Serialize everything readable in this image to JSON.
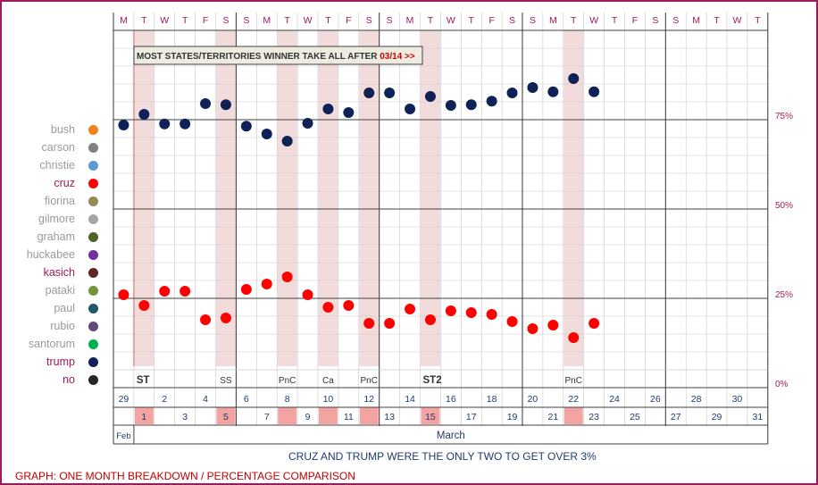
{
  "chart_data": {
    "type": "scatter",
    "title": "",
    "weekday_letters": [
      "M",
      "T",
      "W",
      "T",
      "F",
      "S",
      "S",
      "M",
      "T",
      "W",
      "T",
      "F",
      "S",
      "S",
      "M",
      "T",
      "W",
      "T",
      "F",
      "S",
      "S",
      "M",
      "T",
      "W",
      "T",
      "F",
      "S",
      "S",
      "M",
      "T",
      "W",
      "T"
    ],
    "dates": [
      {
        "month": "Feb",
        "day": 29
      },
      {
        "month": "March",
        "day": 1
      },
      {
        "month": "March",
        "day": 2
      },
      {
        "month": "March",
        "day": 3
      },
      {
        "month": "March",
        "day": 4
      },
      {
        "month": "March",
        "day": 5
      },
      {
        "month": "March",
        "day": 6
      },
      {
        "month": "March",
        "day": 7
      },
      {
        "month": "March",
        "day": 8
      },
      {
        "month": "March",
        "day": 9
      },
      {
        "month": "March",
        "day": 10
      },
      {
        "month": "March",
        "day": 11
      },
      {
        "month": "March",
        "day": 12
      },
      {
        "month": "March",
        "day": 13
      },
      {
        "month": "March",
        "day": 14
      },
      {
        "month": "March",
        "day": 15
      },
      {
        "month": "March",
        "day": 16
      },
      {
        "month": "March",
        "day": 17
      },
      {
        "month": "March",
        "day": 18
      },
      {
        "month": "March",
        "day": 19
      },
      {
        "month": "March",
        "day": 20
      },
      {
        "month": "March",
        "day": 21
      },
      {
        "month": "March",
        "day": 22
      },
      {
        "month": "March",
        "day": 23
      },
      {
        "month": "March",
        "day": 24
      },
      {
        "month": "March",
        "day": 25
      },
      {
        "month": "March",
        "day": 26
      },
      {
        "month": "March",
        "day": 27
      },
      {
        "month": "March",
        "day": 28
      },
      {
        "month": "March",
        "day": 29
      },
      {
        "month": "March",
        "day": 30
      },
      {
        "month": "March",
        "day": 31
      }
    ],
    "months": [
      {
        "label": "Feb",
        "days": 1
      },
      {
        "label": "March",
        "days": 31
      }
    ],
    "highlight_days": [
      1,
      5,
      8,
      10,
      12,
      15,
      22
    ],
    "event_labels": [
      {
        "day": 1,
        "text": "ST",
        "bold": true
      },
      {
        "day": 5,
        "text": "SS",
        "bold": false
      },
      {
        "day": 8,
        "text": "PnC",
        "bold": false
      },
      {
        "day": 10,
        "text": "Ca",
        "bold": false
      },
      {
        "day": 12,
        "text": "PnC",
        "bold": false
      },
      {
        "day": 15,
        "text": "ST2",
        "bold": true
      },
      {
        "day": 22,
        "text": "PnC",
        "bold": false
      }
    ],
    "ylim": [
      0,
      100
    ],
    "ytick_labels": [
      "100%",
      "75%",
      "50%",
      "25%",
      "0%"
    ],
    "ytick_values": [
      100,
      75,
      50,
      25,
      0
    ],
    "annotation_box": {
      "text": "MOST STATES/TERRITORIES WINNER TAKE ALL AFTER ",
      "highlight": "03/14 >>",
      "highlight_color": "#cc0000"
    },
    "legend": [
      {
        "name": "bush",
        "color": "#f28120",
        "highlight": false
      },
      {
        "name": "carson",
        "color": "#808080",
        "highlight": false
      },
      {
        "name": "christie",
        "color": "#5b9bd5",
        "highlight": false
      },
      {
        "name": "cruz",
        "color": "#ff0000",
        "highlight": true
      },
      {
        "name": "fiorina",
        "color": "#948a54",
        "highlight": false
      },
      {
        "name": "gilmore",
        "color": "#a6a6a6",
        "highlight": false
      },
      {
        "name": "graham",
        "color": "#4f6228",
        "highlight": false
      },
      {
        "name": "huckabee",
        "color": "#7030a0",
        "highlight": false
      },
      {
        "name": "kasich",
        "color": "#632523",
        "highlight": true
      },
      {
        "name": "pataki",
        "color": "#77933c",
        "highlight": false
      },
      {
        "name": "paul",
        "color": "#215967",
        "highlight": false
      },
      {
        "name": "rubio",
        "color": "#604a7b",
        "highlight": false
      },
      {
        "name": "santorum",
        "color": "#00b050",
        "highlight": false
      },
      {
        "name": "trump",
        "color": "#0f2257",
        "highlight": true
      },
      {
        "name": "no",
        "color": "#262626",
        "highlight": true
      }
    ],
    "series": [
      {
        "name": "trump",
        "color": "#0f2257",
        "values": [
          73.5,
          76.5,
          73.8,
          73.8,
          79.5,
          79.2,
          73.2,
          71,
          69,
          74,
          78,
          77,
          82.5,
          82.5,
          78,
          81.5,
          79,
          79.2,
          80.2,
          82.5,
          84,
          82.8,
          86.5,
          82.8,
          null,
          null,
          null,
          null,
          null,
          null,
          null,
          null
        ]
      },
      {
        "name": "cruz",
        "color": "#ff0000",
        "values": [
          26,
          23,
          27,
          27,
          19,
          19.5,
          27.5,
          29,
          31,
          26,
          22.5,
          23,
          18,
          18,
          22,
          19,
          21.5,
          21,
          20.5,
          18.5,
          16.5,
          17.5,
          14,
          18,
          null,
          null,
          null,
          null,
          null,
          null,
          null,
          null
        ]
      }
    ],
    "bottom_note": "CRUZ AND TRUMP WERE THE ONLY TWO TO GET OVER 3%",
    "caption": "GRAPH: ONE MONTH BREAKDOWN / PERCENTAGE COMPARISON",
    "colors": {
      "accent": "#a0195a",
      "band": "#f2dcdb",
      "grid": "#c8c8c8",
      "major": "#808080",
      "tick_text": "#a0195a"
    }
  }
}
